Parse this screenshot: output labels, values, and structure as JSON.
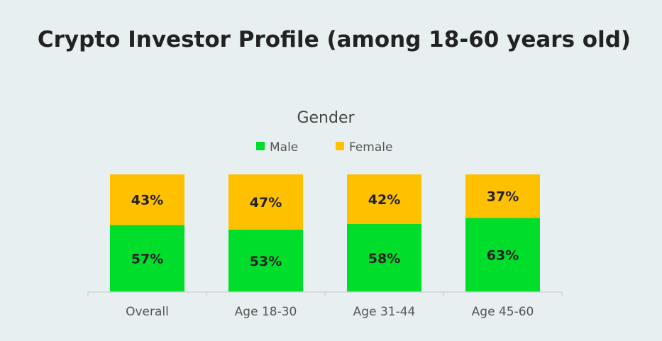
{
  "chart_data": {
    "type": "bar",
    "stacked": true,
    "title": "Crypto Investor Profile (among 18-60 years old)",
    "subtitle": "Gender",
    "legend_position": "top-center",
    "grid": false,
    "categories": [
      "Overall",
      "Age 18-30",
      "Age 31-44",
      "Age 45-60"
    ],
    "series": [
      {
        "name": "Male",
        "color": "#00dd2a",
        "values": [
          57,
          53,
          58,
          63
        ],
        "labels": [
          "57%",
          "53%",
          "58%",
          "63%"
        ]
      },
      {
        "name": "Female",
        "color": "#ffc000",
        "values": [
          43,
          47,
          42,
          37
        ],
        "labels": [
          "43%",
          "47%",
          "42%",
          "37%"
        ]
      }
    ],
    "ylim": [
      0,
      100
    ]
  }
}
